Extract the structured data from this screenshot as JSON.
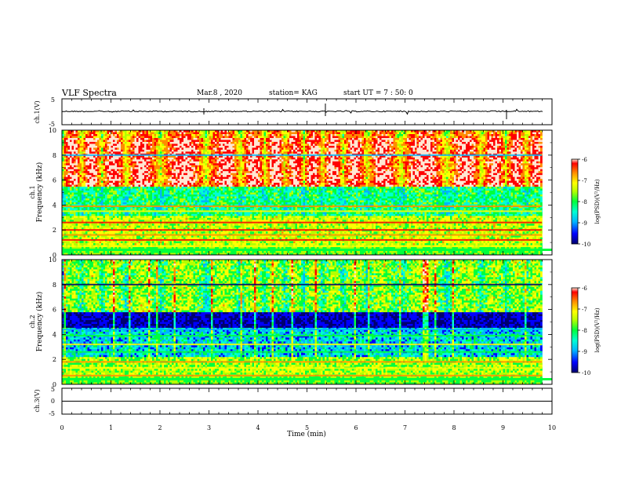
{
  "header": {
    "title": "VLF Spectra",
    "date": "Mar.8 , 2020",
    "station": "station= KAG",
    "start": "start UT = 7 : 50: 0"
  },
  "chart_data": [
    {
      "type": "line",
      "panel": "ch1-waveform",
      "ylabel": "ch.1(V)",
      "ylim": [
        -5,
        5
      ],
      "yticks": [
        "5",
        "-5"
      ],
      "xlim": [
        0,
        10
      ]
    },
    {
      "type": "heatmap",
      "panel": "ch1-spectrogram",
      "ylabel": "ch.1\nFrequency (kHz)",
      "ylim": [
        0,
        10
      ],
      "yticks": [
        "0",
        "2",
        "4",
        "6",
        "8",
        "10"
      ],
      "xlim": [
        0,
        10
      ],
      "colorbar": {
        "label": "log(PSD)(V²/Hz)",
        "range": [
          -10,
          -6
        ],
        "ticks": [
          "-6",
          "-7",
          "-8",
          "-9",
          "-10"
        ]
      }
    },
    {
      "type": "heatmap",
      "panel": "ch2-spectrogram",
      "ylabel": "ch.2\nFrequency (kHz)",
      "ylim": [
        0,
        10
      ],
      "yticks": [
        "0",
        "2",
        "4",
        "6",
        "8",
        "10"
      ],
      "xlim": [
        0,
        10
      ],
      "colorbar": {
        "label": "log(PSD)(V²/Hz)",
        "range": [
          -10,
          -6
        ],
        "ticks": [
          "-6",
          "-7",
          "-8",
          "-9",
          "-10"
        ]
      }
    },
    {
      "type": "line",
      "panel": "ch3-waveform",
      "ylabel": "ch.3(V)",
      "ylim": [
        -5,
        5
      ],
      "yticks": [
        "5",
        "0",
        "-5"
      ],
      "xlim": [
        0,
        10
      ]
    }
  ],
  "xaxis": {
    "label": "Time (min)",
    "ticks": [
      "0",
      "1",
      "2",
      "3",
      "4",
      "5",
      "6",
      "7",
      "8",
      "9",
      "10"
    ]
  },
  "colors": {
    "colormap": [
      "#00006e",
      "#0000ff",
      "#00b4ff",
      "#00ffd2",
      "#00ff3c",
      "#b4ff00",
      "#ffff00",
      "#ff8c00",
      "#ff0000",
      "#ffe6d2"
    ]
  }
}
